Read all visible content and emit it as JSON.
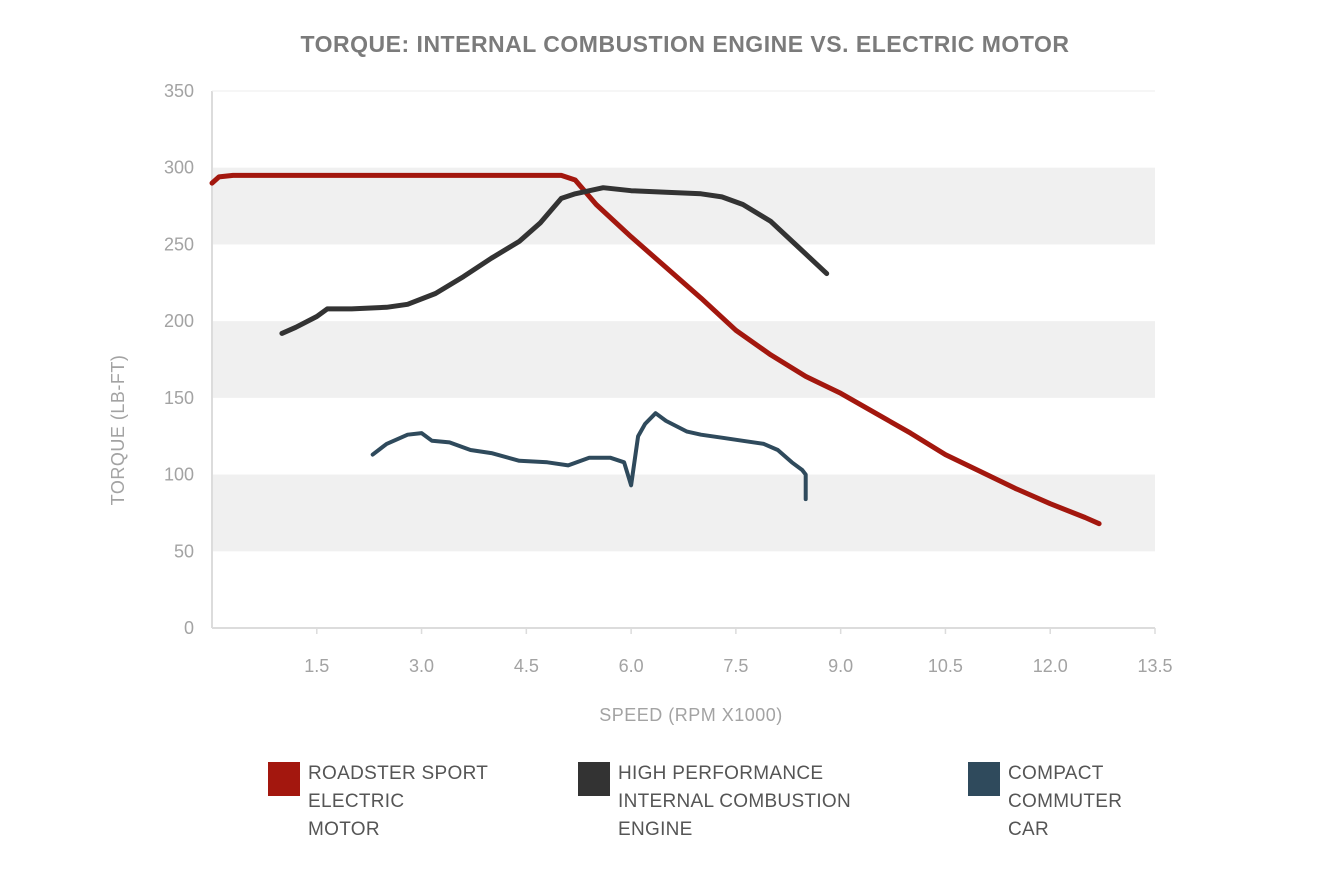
{
  "colors": {
    "roadster": "#a3170e",
    "ice": "#333333",
    "compact": "#2f4a5c",
    "band": "#f0f0f0",
    "axis": "#dcdcdc"
  },
  "chart_data": {
    "type": "line",
    "title": "TORQUE: INTERNAL COMBUSTION ENGINE VS. ELECTRIC MOTOR",
    "xlabel": "SPEED (RPM X1000)",
    "ylabel": "TORQUE (LB-FT)",
    "xlim": [
      0,
      13.5
    ],
    "ylim": [
      0,
      350
    ],
    "x_ticks": [
      "1.5",
      "3.0",
      "4.5",
      "6.0",
      "7.5",
      "9.0",
      "10.5",
      "12.0",
      "13.5"
    ],
    "x_tick_values": [
      1.5,
      3.0,
      4.5,
      6.0,
      7.5,
      9.0,
      10.5,
      12.0,
      13.5
    ],
    "y_ticks": [
      "0",
      "50",
      "100",
      "150",
      "200",
      "250",
      "300",
      "350"
    ],
    "y_tick_values": [
      0,
      50,
      100,
      150,
      200,
      250,
      300,
      350
    ],
    "series": [
      {
        "name": "ROADSTER SPORT ELECTRIC MOTOR",
        "color_key": "roadster",
        "x": [
          0.0,
          0.1,
          0.3,
          1.0,
          2.0,
          3.0,
          4.0,
          4.8,
          5.0,
          5.2,
          5.5,
          6.0,
          6.5,
          7.0,
          7.5,
          8.0,
          8.5,
          9.0,
          9.5,
          10.0,
          10.5,
          11.0,
          11.5,
          12.0,
          12.5,
          12.7
        ],
        "y": [
          290,
          294,
          295,
          295,
          295,
          295,
          295,
          295,
          295,
          292,
          276,
          255,
          235,
          215,
          194,
          178,
          164,
          153,
          140,
          127,
          113,
          102,
          91,
          81,
          72,
          68
        ]
      },
      {
        "name": "HIGH PERFORMANCE INTERNAL COMBUSTION ENGINE",
        "color_key": "ice",
        "x": [
          1.0,
          1.2,
          1.5,
          1.65,
          2.0,
          2.5,
          2.8,
          3.2,
          3.6,
          4.0,
          4.4,
          4.7,
          5.0,
          5.2,
          5.6,
          6.0,
          6.5,
          7.0,
          7.3,
          7.6,
          8.0,
          8.4,
          8.8
        ],
        "y": [
          192,
          196,
          203,
          208,
          208,
          209,
          211,
          218,
          229,
          241,
          252,
          264,
          280,
          283,
          287,
          285,
          284,
          283,
          281,
          276,
          265,
          248,
          231
        ]
      },
      {
        "name": "COMPACT COMMUTER CAR",
        "color_key": "compact",
        "x": [
          2.3,
          2.5,
          2.8,
          3.0,
          3.15,
          3.4,
          3.7,
          4.0,
          4.4,
          4.8,
          5.1,
          5.4,
          5.7,
          5.9,
          6.0,
          6.1,
          6.2,
          6.35,
          6.5,
          6.8,
          7.0,
          7.3,
          7.6,
          7.9,
          8.1,
          8.3,
          8.45,
          8.5,
          8.5
        ],
        "y": [
          113,
          120,
          126,
          127,
          122,
          121,
          116,
          114,
          109,
          108,
          106,
          111,
          111,
          108,
          93,
          125,
          133,
          140,
          135,
          128,
          126,
          124,
          122,
          120,
          116,
          108,
          103,
          100,
          84
        ]
      }
    ]
  }
}
